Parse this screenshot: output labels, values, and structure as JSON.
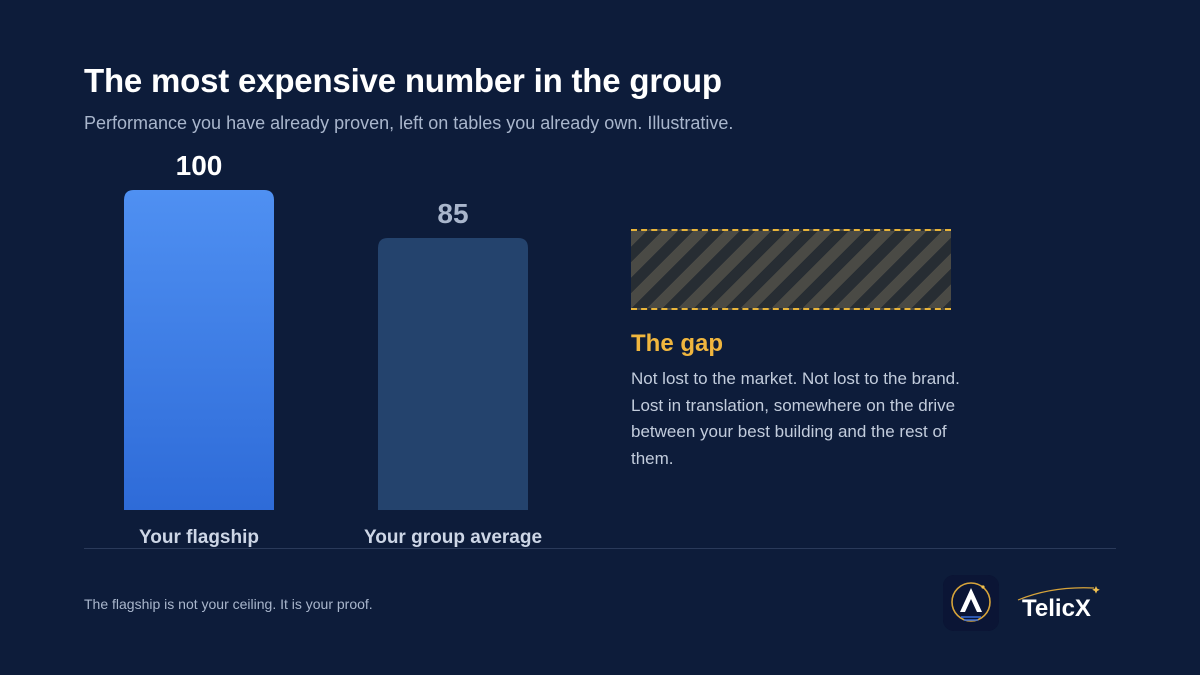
{
  "header": {
    "title": "The most expensive number in the group",
    "subtitle": "Performance you have already proven, left on tables you already own. Illustrative."
  },
  "chart_data": {
    "type": "bar",
    "categories": [
      "Your flagship",
      "Your group average"
    ],
    "values": [
      100,
      85
    ],
    "value_labels": [
      "100",
      "85"
    ],
    "ylim": [
      0,
      100
    ],
    "grid": false,
    "colors": [
      "#4a8ef0",
      "#24436d"
    ]
  },
  "gap": {
    "title": "The gap",
    "description": "Not lost to the market. Not lost to the brand. Lost in translation, somewhere on the drive between your best building and the rest of them.",
    "accent": "#f0b63e"
  },
  "footer": {
    "note": "The flagship is not your ceiling. It is your proof."
  },
  "branding": {
    "app_icon": "telicx-a-emblem-icon",
    "logo_text": "TelicX"
  },
  "colors": {
    "background": "#0d1c3a",
    "accent": "#f0b63e"
  }
}
